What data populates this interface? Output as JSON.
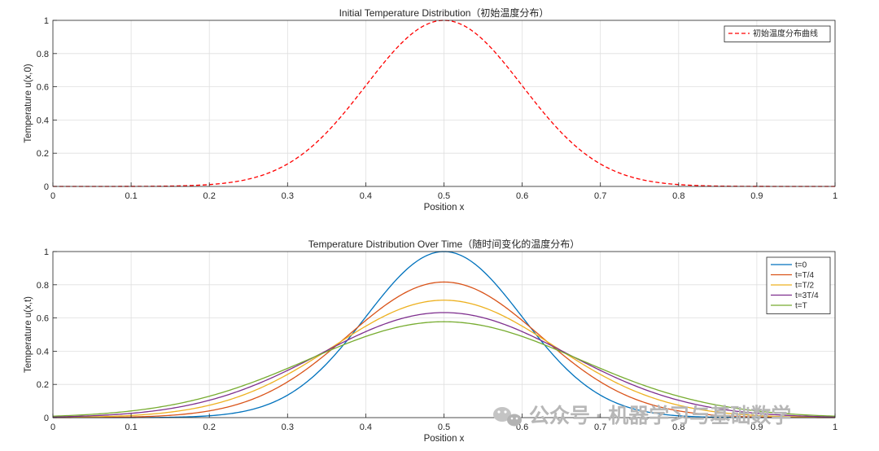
{
  "chart_data": [
    {
      "type": "line",
      "title": "Initial Temperature Distribution（初始温度分布）",
      "xlabel": "Position x",
      "ylabel": "Temperature u(x,0)",
      "xlim": [
        0,
        1
      ],
      "ylim": [
        0,
        1
      ],
      "xticks": [
        "0",
        "0.1",
        "0.2",
        "0.3",
        "0.4",
        "0.5",
        "0.6",
        "0.7",
        "0.8",
        "0.9",
        "1"
      ],
      "yticks": [
        "0",
        "0.2",
        "0.4",
        "0.6",
        "0.8",
        "1"
      ],
      "grid": true,
      "legend_position": "top-right",
      "series": [
        {
          "name": "初始温度分布曲线",
          "color": "#ff0000",
          "style": "dashed",
          "x": [
            0,
            0.05,
            0.1,
            0.15,
            0.2,
            0.25,
            0.3,
            0.35,
            0.4,
            0.45,
            0.5,
            0.55,
            0.6,
            0.65,
            0.7,
            0.75,
            0.8,
            0.85,
            0.9,
            0.95,
            1
          ],
          "y": [
            0,
            0,
            0,
            0.001,
            0.004,
            0.044,
            0.135,
            0.325,
            0.607,
            0.883,
            1,
            0.883,
            0.607,
            0.325,
            0.135,
            0.044,
            0.004,
            0.001,
            0,
            0,
            0
          ]
        }
      ]
    },
    {
      "type": "line",
      "title": "Temperature Distribution Over Time（随时间变化的温度分布）",
      "xlabel": "Position x",
      "ylabel": "Temperature u(x,t)",
      "xlim": [
        0,
        1
      ],
      "ylim": [
        0,
        1
      ],
      "xticks": [
        "0",
        "0.1",
        "0.2",
        "0.3",
        "0.4",
        "0.5",
        "0.6",
        "0.7",
        "0.8",
        "0.9",
        "1"
      ],
      "yticks": [
        "0",
        "0.2",
        "0.4",
        "0.6",
        "0.8",
        "1"
      ],
      "grid": true,
      "legend_position": "top-right",
      "series": [
        {
          "name": "t=0",
          "color": "#0072bd",
          "peak": 1.0,
          "variance": 0.01
        },
        {
          "name": "t=T/4",
          "color": "#d95319",
          "peak": 0.8165,
          "variance": 0.015
        },
        {
          "name": "t=T/2",
          "color": "#edb120",
          "peak": 0.7071,
          "variance": 0.02
        },
        {
          "name": "t=3T/4",
          "color": "#7e2f8e",
          "peak": 0.6325,
          "variance": 0.025
        },
        {
          "name": "t=T",
          "color": "#77ac30",
          "peak": 0.5774,
          "variance": 0.03
        }
      ]
    }
  ],
  "watermark": {
    "icon": "wechat-icon",
    "text": "公众号 · 机器学习与基础数学"
  }
}
